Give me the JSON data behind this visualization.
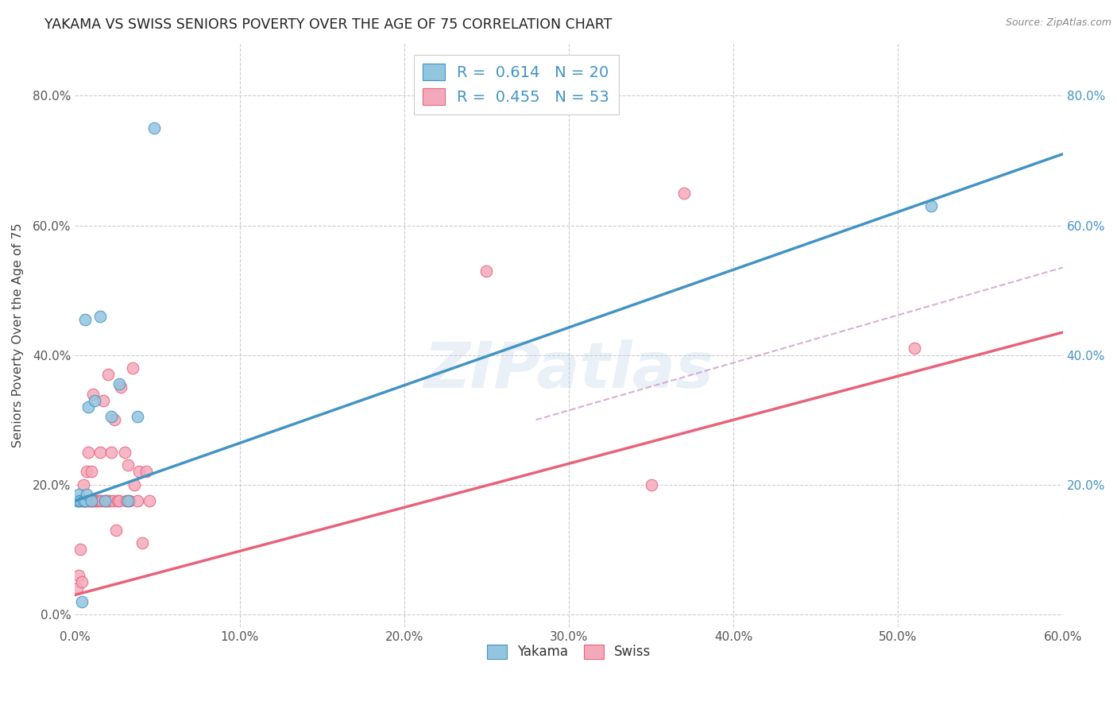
{
  "title": "YAKAMA VS SWISS SENIORS POVERTY OVER THE AGE OF 75 CORRELATION CHART",
  "source": "Source: ZipAtlas.com",
  "ylabel": "Seniors Poverty Over the Age of 75",
  "xlim": [
    0.0,
    0.6
  ],
  "ylim": [
    -0.02,
    0.88
  ],
  "xticks": [
    0.0,
    0.1,
    0.2,
    0.3,
    0.4,
    0.5,
    0.6
  ],
  "yticks_left": [
    0.0,
    0.2,
    0.4,
    0.6,
    0.8
  ],
  "yticks_right": [
    0.2,
    0.4,
    0.6,
    0.8
  ],
  "yakama_color": "#92c5de",
  "swiss_color": "#f4a9bb",
  "blue_line_color": "#4393c3",
  "pink_line_color": "#e8627a",
  "dashed_line_color": "#c994c7",
  "legend_R_yakama": "R =  0.614",
  "legend_N_yakama": "N = 20",
  "legend_R_swiss": "R =  0.455",
  "legend_N_swiss": "N = 53",
  "watermark": "ZIPatlas",
  "yakama_x": [
    0.001,
    0.002,
    0.002,
    0.003,
    0.004,
    0.005,
    0.006,
    0.007,
    0.008,
    0.01,
    0.012,
    0.015,
    0.018,
    0.022,
    0.027,
    0.032,
    0.038,
    0.52,
    0.048,
    0.006
  ],
  "yakama_y": [
    0.175,
    0.175,
    0.185,
    0.175,
    0.02,
    0.175,
    0.175,
    0.185,
    0.32,
    0.175,
    0.33,
    0.46,
    0.175,
    0.305,
    0.355,
    0.175,
    0.305,
    0.63,
    0.75,
    0.455
  ],
  "swiss_x": [
    0.001,
    0.002,
    0.002,
    0.003,
    0.004,
    0.004,
    0.005,
    0.005,
    0.006,
    0.006,
    0.007,
    0.007,
    0.008,
    0.008,
    0.009,
    0.01,
    0.01,
    0.011,
    0.011,
    0.012,
    0.013,
    0.014,
    0.015,
    0.015,
    0.016,
    0.017,
    0.018,
    0.019,
    0.02,
    0.02,
    0.021,
    0.022,
    0.023,
    0.024,
    0.025,
    0.026,
    0.027,
    0.028,
    0.03,
    0.031,
    0.032,
    0.033,
    0.035,
    0.036,
    0.038,
    0.039,
    0.041,
    0.043,
    0.045,
    0.35,
    0.37,
    0.51,
    0.25
  ],
  "swiss_y": [
    0.04,
    0.06,
    0.175,
    0.1,
    0.05,
    0.175,
    0.175,
    0.2,
    0.175,
    0.175,
    0.175,
    0.22,
    0.175,
    0.25,
    0.175,
    0.175,
    0.22,
    0.175,
    0.34,
    0.175,
    0.175,
    0.175,
    0.175,
    0.25,
    0.175,
    0.33,
    0.175,
    0.175,
    0.175,
    0.37,
    0.175,
    0.25,
    0.175,
    0.3,
    0.13,
    0.175,
    0.175,
    0.35,
    0.25,
    0.175,
    0.23,
    0.175,
    0.38,
    0.2,
    0.175,
    0.22,
    0.11,
    0.22,
    0.175,
    0.2,
    0.65,
    0.41,
    0.53
  ],
  "yakama_trend_x": [
    0.0,
    0.6
  ],
  "yakama_trend_y": [
    0.175,
    0.71
  ],
  "swiss_trend_x": [
    0.0,
    0.6
  ],
  "swiss_trend_y": [
    0.03,
    0.435
  ],
  "dashed_trend_x": [
    0.28,
    0.6
  ],
  "dashed_trend_y": [
    0.3,
    0.535
  ]
}
